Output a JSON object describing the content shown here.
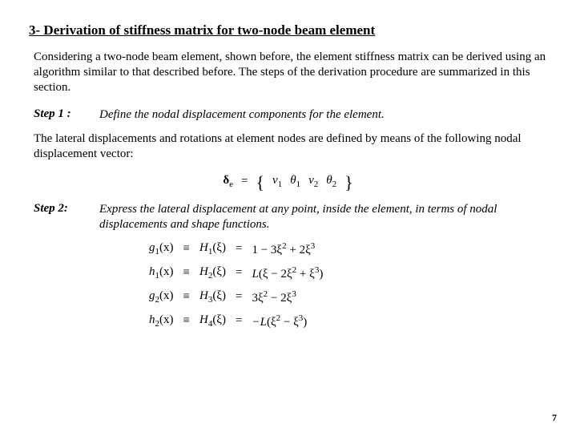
{
  "heading": "3- Derivation of stiffness matrix for two-node beam element",
  "intro": "Considering a two-node beam element, shown before, the element stiffness matrix can be derived using an algorithm similar to that described before. The steps of the derivation procedure are summarized in this section.",
  "step1": {
    "label": "Step 1 :",
    "text": "Define the nodal displacement components for the element."
  },
  "step1_body": "The lateral displacements and rotations at element nodes are defined by means of the following nodal displacement vector:",
  "delta_eq": {
    "lhs_symbol": "δ",
    "lhs_sub": "e",
    "eq": "=",
    "v1": "v",
    "v1_sub": "1",
    "t1": "θ",
    "t1_sub": "1",
    "v2": "v",
    "v2_sub": "2",
    "t2": "θ",
    "t2_sub": "2"
  },
  "step2": {
    "label": "Step 2:",
    "text": "Express the lateral displacement at any point, inside the element, in terms of nodal displacements and shape functions."
  },
  "shape": {
    "g1_l": "g",
    "g1_sub": "1",
    "g1_arg": "(x)",
    "h1_l": "H",
    "h1a_sub": "1",
    "h1_arg": "(ξ)",
    "g1_rhs_a": "1 − 3ξ",
    "g1_rhs_b": " + 2ξ",
    "hh1_l": "h",
    "hh1_sub": "1",
    "hH2": "H",
    "hH2_sub": "2",
    "hh1_rhs_a": "L",
    "hh1_rhs_b": "ξ − 2ξ",
    "hh1_rhs_c": " + ξ",
    "g2_l": "g",
    "g2_sub": "2",
    "H3": "H",
    "H3_sub": "3",
    "g2_rhs_a": "3ξ",
    "g2_rhs_b": " − 2ξ",
    "hh2_l": "h",
    "hh2_sub": "2",
    "H4": "H",
    "H4_sub": "4",
    "hh2_rhs_a": "−L",
    "hh2_rhs_b": "ξ",
    "hh2_rhs_c": " − ξ",
    "exp2": "2",
    "exp3": "3",
    "equiv": "≡",
    "eq": "="
  },
  "page_number": "7"
}
